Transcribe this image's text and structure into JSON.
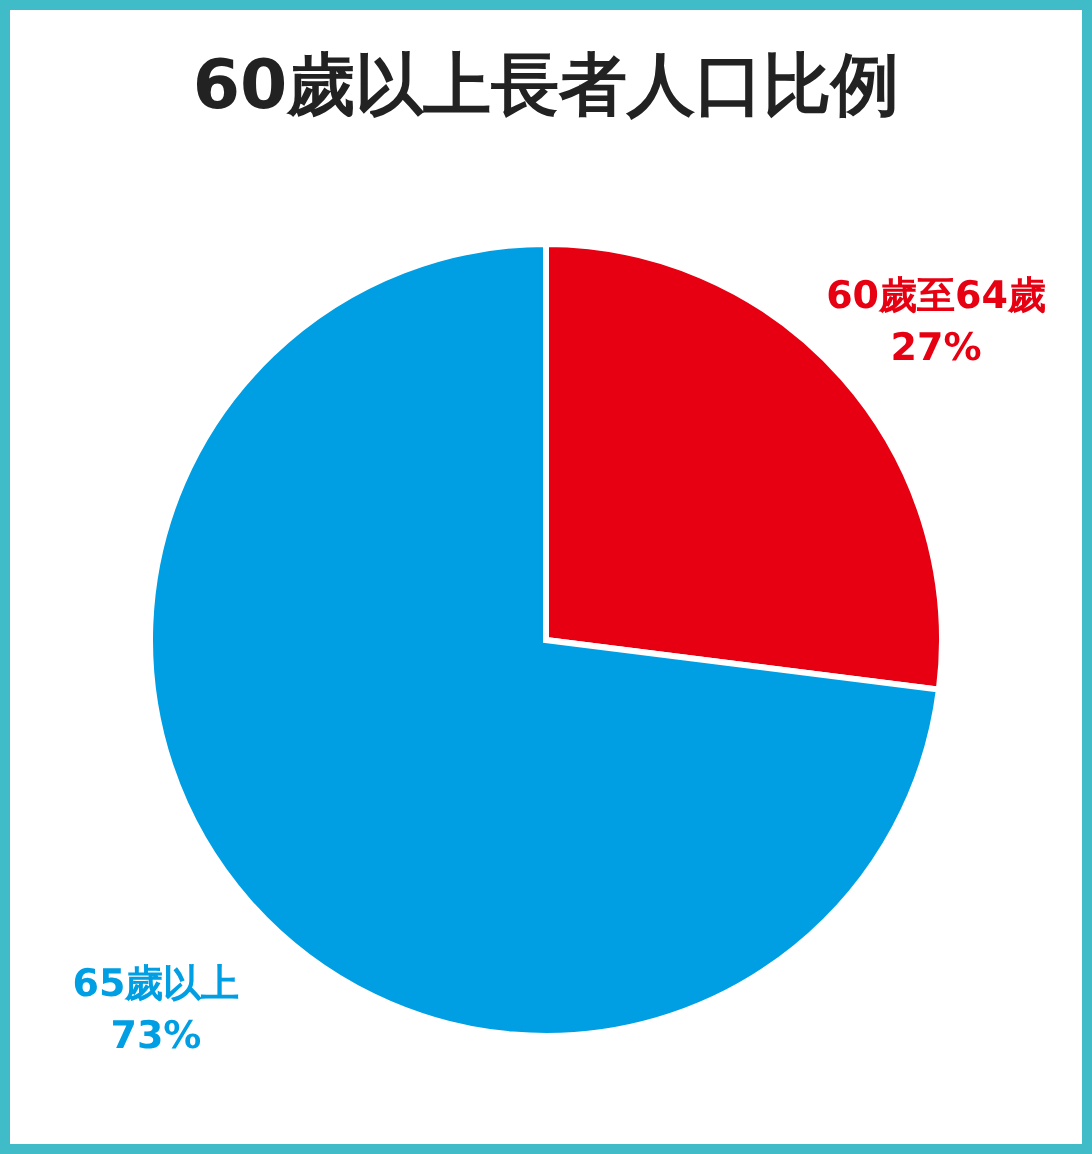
{
  "chart_data": {
    "type": "pie",
    "title": "60歲以上長者人口比例",
    "categories": [
      "60歲至64歲",
      "65歲以上"
    ],
    "values": [
      27,
      73
    ],
    "colors": [
      "#e60012",
      "#009fe3"
    ],
    "value_labels": [
      "27%",
      "73%"
    ],
    "legend": false
  }
}
